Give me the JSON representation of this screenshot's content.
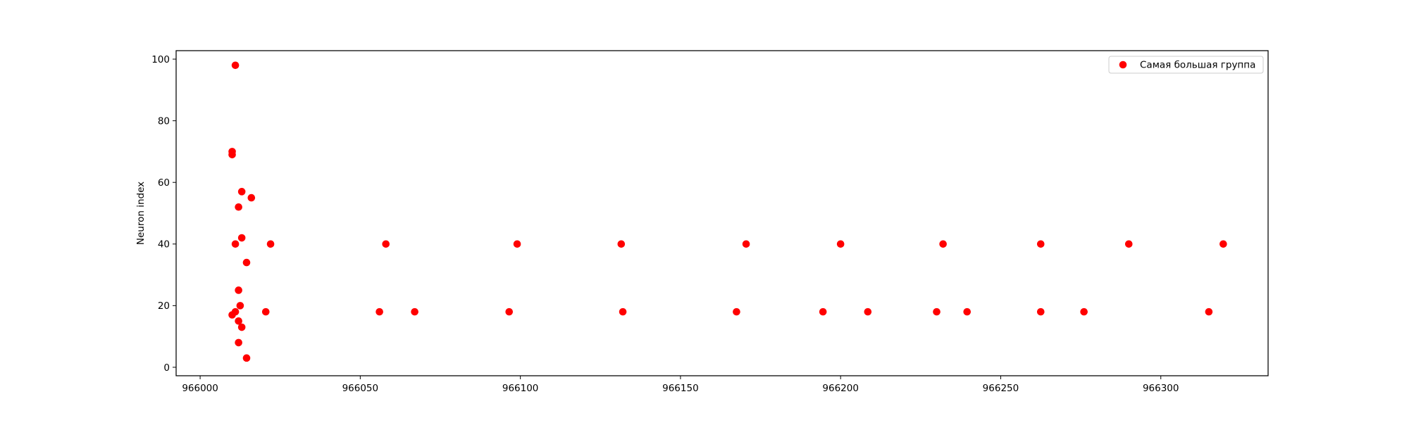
{
  "chart_data": {
    "type": "scatter",
    "title": "",
    "xlabel": "",
    "ylabel": "Neuron index",
    "xlim": [
      965992.5,
      966333.5
    ],
    "ylim": [
      -2.75,
      102.75
    ],
    "xticks": [
      966000,
      966050,
      966100,
      966150,
      966200,
      966250,
      966300
    ],
    "xtick_labels": [
      "966000",
      "966050",
      "966100",
      "966150",
      "966200",
      "966250",
      "966300"
    ],
    "yticks": [
      0,
      20,
      40,
      60,
      80,
      100
    ],
    "ytick_labels": [
      "0",
      "20",
      "40",
      "60",
      "80",
      "100"
    ],
    "grid": false,
    "legend_position": "top-right",
    "series": [
      {
        "name": "Самая большая группа",
        "color": "#ff0000",
        "marker": "circle",
        "points": [
          {
            "x": 966011.0,
            "y": 98
          },
          {
            "x": 966010.0,
            "y": 70
          },
          {
            "x": 966010.0,
            "y": 69
          },
          {
            "x": 966013.0,
            "y": 57
          },
          {
            "x": 966016.0,
            "y": 55
          },
          {
            "x": 966012.0,
            "y": 52
          },
          {
            "x": 966013.0,
            "y": 42
          },
          {
            "x": 966011.0,
            "y": 40
          },
          {
            "x": 966022.0,
            "y": 40
          },
          {
            "x": 966058.0,
            "y": 40
          },
          {
            "x": 966099.0,
            "y": 40
          },
          {
            "x": 966131.5,
            "y": 40
          },
          {
            "x": 966170.5,
            "y": 40
          },
          {
            "x": 966200.0,
            "y": 40
          },
          {
            "x": 966232.0,
            "y": 40
          },
          {
            "x": 966262.5,
            "y": 40
          },
          {
            "x": 966290.0,
            "y": 40
          },
          {
            "x": 966319.5,
            "y": 40
          },
          {
            "x": 966014.5,
            "y": 34
          },
          {
            "x": 966012.0,
            "y": 25
          },
          {
            "x": 966012.5,
            "y": 20
          },
          {
            "x": 966010.0,
            "y": 17
          },
          {
            "x": 966011.0,
            "y": 18
          },
          {
            "x": 966020.5,
            "y": 18
          },
          {
            "x": 966056.0,
            "y": 18
          },
          {
            "x": 966067.0,
            "y": 18
          },
          {
            "x": 966096.5,
            "y": 18
          },
          {
            "x": 966132.0,
            "y": 18
          },
          {
            "x": 966167.5,
            "y": 18
          },
          {
            "x": 966194.5,
            "y": 18
          },
          {
            "x": 966208.5,
            "y": 18
          },
          {
            "x": 966230.0,
            "y": 18
          },
          {
            "x": 966239.5,
            "y": 18
          },
          {
            "x": 966262.5,
            "y": 18
          },
          {
            "x": 966276.0,
            "y": 18
          },
          {
            "x": 966315.0,
            "y": 18
          },
          {
            "x": 966012.0,
            "y": 15
          },
          {
            "x": 966013.0,
            "y": 13
          },
          {
            "x": 966012.0,
            "y": 8
          },
          {
            "x": 966014.5,
            "y": 3
          }
        ]
      }
    ]
  }
}
